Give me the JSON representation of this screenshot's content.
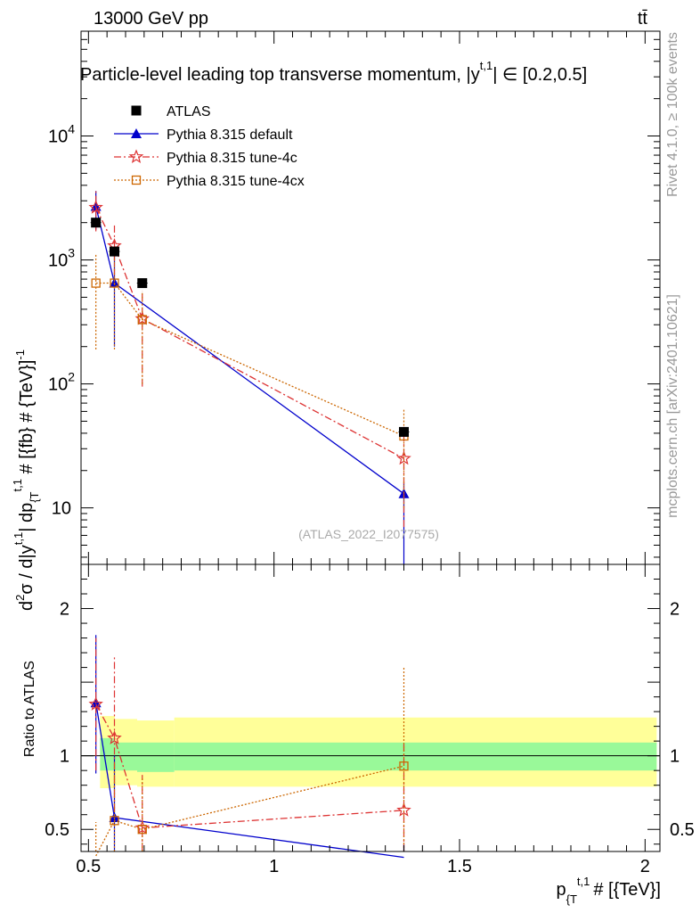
{
  "header": {
    "energy_label": "13000 GeV pp",
    "process_label": "tt̄"
  },
  "side_labels": {
    "rivet": "Rivet 4.1.0, ≥ 100k events",
    "mcplots": "mcplots.cern.ch [arXiv:2401.10621]"
  },
  "chart_data": {
    "type": "line",
    "title": "Particle-level leading top transverse momentum, |y^{t,1}| ∈ [0.2,0.5]",
    "title_main": "Particle-level leading top transverse momentum, |y",
    "title_sup": "t,1",
    "title_tail": "| ∈ [0.2,0.5]",
    "watermark": "(ATLAS_2022_I2077575)",
    "xlabel": "p_{T}^{t,1} # [{TeV}]",
    "xlabel_main": "p",
    "xlabel_sub": "{T",
    "xlabel_sup": "t,1",
    "xlabel_tail": "# [{TeV}]",
    "ylabel": "d²σ / d|y^{t,1}| dp_{T}^{t,1} # [{fb} # {TeV}⁻¹]",
    "ylabel_part1": "d",
    "ylabel_sup1": "2",
    "ylabel_part2": "σ / d|y",
    "ylabel_sup2": "t,1",
    "ylabel_part3": "| dp",
    "ylabel_sub3": "{T",
    "ylabel_sup3": "t,1",
    "ylabel_part4": " # [{fb} # {TeV}]",
    "ylabel_sup4": "-1",
    "ratio_ylabel": "Ratio to ATLAS",
    "xlim": [
      0.48,
      2.04
    ],
    "ylim_main": [
      3.5,
      70000
    ],
    "ylim_ratio": [
      0.35,
      2.3
    ],
    "x_ticks": [
      {
        "value": 0.5,
        "label": "0.5"
      },
      {
        "value": 1.0,
        "label": "1"
      },
      {
        "value": 1.5,
        "label": "1.5"
      },
      {
        "value": 2.0,
        "label": "2"
      }
    ],
    "y_ticks_main": [
      {
        "value": 10,
        "label": "10"
      },
      {
        "value": 100,
        "label": "10",
        "sup": "2"
      },
      {
        "value": 1000,
        "label": "10",
        "sup": "3"
      },
      {
        "value": 10000,
        "label": "10",
        "sup": "4"
      }
    ],
    "y_ticks_ratio": [
      {
        "value": 0.5,
        "label": "0.5"
      },
      {
        "value": 1,
        "label": "1"
      },
      {
        "value": 2,
        "label": "2"
      }
    ],
    "legend_position": "top-left",
    "data": {
      "name": "ATLAS",
      "color": "#000000",
      "points": [
        {
          "x": 0.52,
          "y": 2000,
          "xerr": 0.01
        },
        {
          "x": 0.57,
          "y": 1170,
          "xerr": 0.01
        },
        {
          "x": 0.645,
          "y": 650,
          "xerr": 0.01
        },
        {
          "x": 1.35,
          "y": 41,
          "xerr": 0.015
        }
      ],
      "ratio_band_x": [
        0.5,
        0.54,
        0.6,
        0.7,
        2.0
      ],
      "ratio_band_inner": [
        [
          0.9,
          1.12
        ],
        [
          0.9,
          1.09
        ],
        [
          0.89,
          1.09
        ],
        [
          0.9,
          1.09
        ]
      ],
      "ratio_band_outer": [
        [
          0.78,
          1.27
        ],
        [
          0.8,
          1.25
        ],
        [
          0.79,
          1.24
        ],
        [
          0.79,
          1.26
        ]
      ],
      "band_inner_color": "#99f999",
      "band_outer_color": "#ffff99"
    },
    "series": [
      {
        "name": "Pythia 8.315 default",
        "color": "#0000cc",
        "line": "solid",
        "marker": "triangle",
        "points": [
          {
            "x": 0.52,
            "y": 2700,
            "ylo": 1750,
            "yhi": 3600
          },
          {
            "x": 0.57,
            "y": 650,
            "ylo": 200,
            "yhi": 1100
          },
          {
            "x": 1.35,
            "y": 13,
            "ylo": 0.5,
            "yhi": 16
          }
        ],
        "ratio": [
          {
            "x": 0.52,
            "y": 1.36,
            "ylo": 0.88,
            "yhi": 1.82
          },
          {
            "x": 0.57,
            "y": 0.58,
            "ylo": 0.1,
            "yhi": 1.0
          },
          {
            "x": 1.35,
            "y": 0.31,
            "ylo": 0.0,
            "yhi": 0.4
          }
        ]
      },
      {
        "name": "Pythia 8.315 tune-4c",
        "color": "#dd3333",
        "line": "dashdot",
        "marker": "star",
        "points": [
          {
            "x": 0.52,
            "y": 2650,
            "ylo": 1700,
            "yhi": 3600
          },
          {
            "x": 0.57,
            "y": 1300,
            "ylo": 750,
            "yhi": 1950
          },
          {
            "x": 0.645,
            "y": 335,
            "ylo": 95,
            "yhi": 560
          },
          {
            "x": 1.35,
            "y": 25,
            "ylo": 7,
            "yhi": 45
          }
        ],
        "ratio": [
          {
            "x": 0.52,
            "y": 1.35,
            "ylo": 0.9,
            "yhi": 1.8
          },
          {
            "x": 0.57,
            "y": 1.12,
            "ylo": 0.62,
            "yhi": 1.67
          },
          {
            "x": 0.645,
            "y": 0.51,
            "ylo": 0.15,
            "yhi": 0.87
          },
          {
            "x": 1.35,
            "y": 0.63,
            "ylo": 0.18,
            "yhi": 1.09
          }
        ]
      },
      {
        "name": "Pythia 8.315 tune-4cx",
        "color": "#cc6600",
        "line": "dotted",
        "marker": "square-open",
        "points": [
          {
            "x": 0.52,
            "y": 650,
            "ylo": 190,
            "yhi": 1100
          },
          {
            "x": 0.57,
            "y": 650,
            "ylo": 190,
            "yhi": 1100
          },
          {
            "x": 0.645,
            "y": 330,
            "ylo": 100,
            "yhi": 560
          },
          {
            "x": 1.35,
            "y": 38,
            "ylo": 10,
            "yhi": 62
          }
        ],
        "ratio": [
          {
            "x": 0.52,
            "y": 0.32,
            "ylo": 0.1,
            "yhi": 0.55
          },
          {
            "x": 0.57,
            "y": 0.56,
            "ylo": 0.16,
            "yhi": 0.95
          },
          {
            "x": 0.645,
            "y": 0.5,
            "ylo": 0.15,
            "yhi": 0.86
          },
          {
            "x": 1.35,
            "y": 0.93,
            "ylo": 0.25,
            "yhi": 1.6
          }
        ]
      }
    ]
  }
}
